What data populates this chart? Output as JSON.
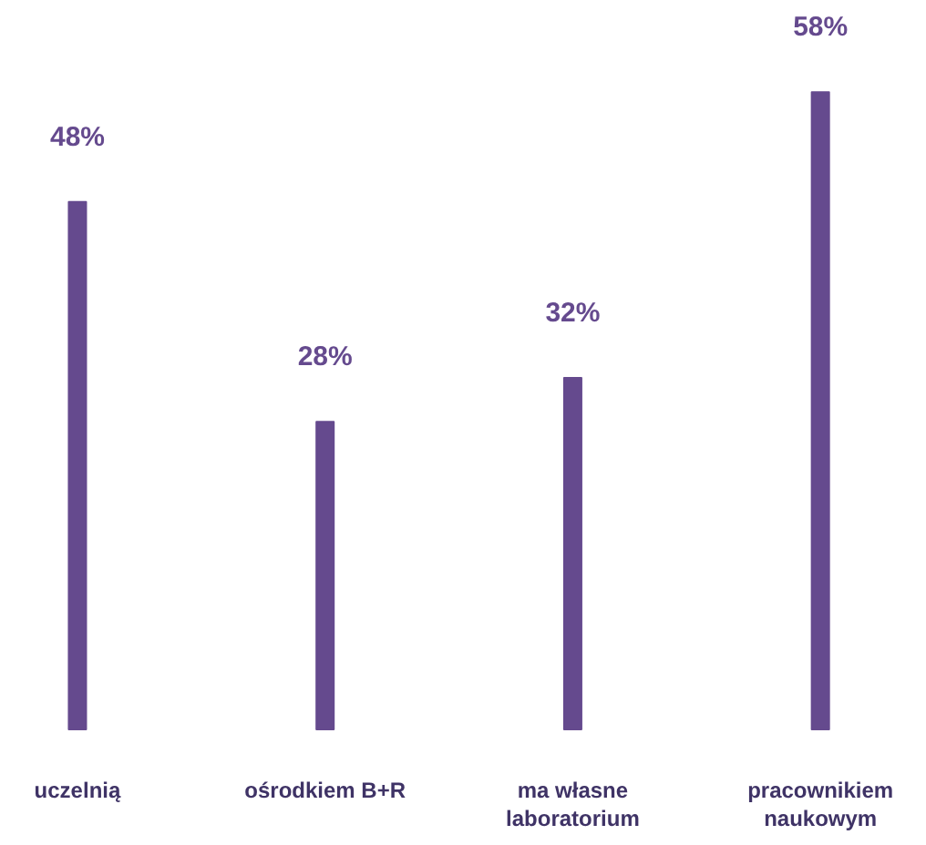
{
  "chart_data": {
    "type": "bar",
    "categories": [
      "uczelnią",
      "ośrodkiem B+R",
      "ma własne\nlaboratorium",
      "pracownikiem\nnaukowym"
    ],
    "values": [
      48,
      28,
      32,
      58
    ],
    "color": "#654a8e",
    "data_labels": true,
    "value_labels": [
      "48%",
      "28%",
      "32%",
      "58%"
    ],
    "grid": false
  }
}
